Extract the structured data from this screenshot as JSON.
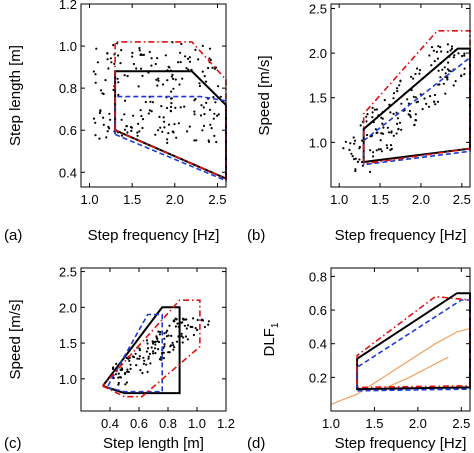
{
  "chart_data": [
    {
      "panel_label": "(a)",
      "type": "scatter",
      "xlabel": "Step frequency [Hz]",
      "ylabel": "Step length [m]",
      "xlim": [
        0.9,
        2.6
      ],
      "ylim": [
        0.33,
        1.2
      ],
      "xticks": [
        "1.0",
        "1.5",
        "2.0",
        "2.5"
      ],
      "yticks": [
        "0.4",
        "0.6",
        "0.8",
        "1.0",
        "1.2"
      ],
      "grid": false,
      "series": [
        {
          "style": "black-solid",
          "color": "#000000",
          "points": [
            [
              1.3,
              0.6
            ],
            [
              1.3,
              0.88
            ],
            [
              2.2,
              0.88
            ],
            [
              2.6,
              0.72
            ],
            [
              2.6,
              0.37
            ],
            [
              1.3,
              0.6
            ]
          ]
        },
        {
          "style": "blue-dashed",
          "color": "#1f3bd6",
          "points": [
            [
              1.3,
              0.58
            ],
            [
              1.3,
              0.76
            ],
            [
              2.3,
              0.76
            ],
            [
              2.6,
              0.74
            ],
            [
              2.6,
              0.36
            ],
            [
              1.3,
              0.58
            ]
          ]
        },
        {
          "style": "red-dashdot",
          "color": "#e01010",
          "points": [
            [
              1.3,
              0.6
            ],
            [
              1.3,
              1.02
            ],
            [
              2.2,
              1.02
            ],
            [
              2.6,
              0.84
            ],
            [
              2.6,
              0.37
            ],
            [
              1.3,
              0.6
            ]
          ]
        }
      ],
      "scatter_bounds": {
        "x": [
          1.05,
          2.55
        ],
        "y": [
          0.45,
          1.06
        ]
      }
    },
    {
      "panel_label": "(b)",
      "type": "scatter",
      "xlabel": "Step frequency [Hz]",
      "ylabel": "Speed [m/s]",
      "xlim": [
        0.9,
        2.6
      ],
      "ylim": [
        0.5,
        2.55
      ],
      "xticks": [
        "1.0",
        "1.5",
        "2.0",
        "2.5"
      ],
      "yticks": [
        "1.0",
        "1.5",
        "2.0",
        "2.5"
      ],
      "grid": false,
      "series": [
        {
          "style": "black-solid",
          "color": "#000000",
          "points": [
            [
              1.3,
              0.78
            ],
            [
              1.3,
              1.15
            ],
            [
              2.45,
              2.05
            ],
            [
              2.6,
              2.05
            ],
            [
              2.6,
              0.93
            ],
            [
              1.3,
              0.78
            ]
          ]
        },
        {
          "style": "blue-dashed",
          "color": "#1f3bd6",
          "points": [
            [
              1.3,
              0.75
            ],
            [
              1.3,
              1.02
            ],
            [
              2.6,
              1.95
            ],
            [
              2.6,
              0.9
            ],
            [
              1.3,
              0.75
            ]
          ]
        },
        {
          "style": "red-dashdot",
          "color": "#e01010",
          "points": [
            [
              1.3,
              0.76
            ],
            [
              1.3,
              1.32
            ],
            [
              2.2,
              2.25
            ],
            [
              2.6,
              2.25
            ],
            [
              2.6,
              0.93
            ],
            [
              1.3,
              0.76
            ]
          ]
        }
      ],
      "scatter_bounds": {
        "x": [
          1.05,
          2.55
        ],
        "y": [
          0.65,
          2.1
        ]
      }
    },
    {
      "panel_label": "(c)",
      "type": "scatter",
      "xlabel": "Step length [m]",
      "ylabel": "Speed [m/s]",
      "xlim": [
        0.2,
        1.2
      ],
      "ylim": [
        0.55,
        2.55
      ],
      "xticks": [
        "0.4",
        "0.6",
        "0.8",
        "1.0",
        "1.2"
      ],
      "yticks": [
        "1.0",
        "1.5",
        "2.0",
        "2.5"
      ],
      "grid": false,
      "series": [
        {
          "style": "black-solid",
          "color": "#000000",
          "points": [
            [
              0.35,
              0.9
            ],
            [
              0.5,
              0.8
            ],
            [
              0.88,
              0.8
            ],
            [
              0.88,
              2.0
            ],
            [
              0.76,
              2.0
            ],
            [
              0.35,
              0.9
            ]
          ]
        },
        {
          "style": "blue-dashed",
          "color": "#1f3bd6",
          "points": [
            [
              0.38,
              0.88
            ],
            [
              0.5,
              0.82
            ],
            [
              0.76,
              0.82
            ],
            [
              0.76,
              1.9
            ],
            [
              0.66,
              1.9
            ],
            [
              0.38,
              0.88
            ]
          ]
        },
        {
          "style": "red-dashdot",
          "color": "#e01010",
          "points": [
            [
              0.35,
              0.9
            ],
            [
              0.5,
              0.75
            ],
            [
              0.62,
              0.75
            ],
            [
              1.02,
              1.45
            ],
            [
              1.02,
              2.1
            ],
            [
              0.88,
              2.1
            ],
            [
              0.35,
              0.9
            ]
          ]
        }
      ],
      "scatter_bounds": {
        "x": [
          0.42,
          1.1
        ],
        "y": [
          0.9,
          1.85
        ]
      }
    },
    {
      "panel_label": "(d)",
      "type": "line",
      "xlabel": "Step frequency [Hz]",
      "ylabel": "DLF",
      "ylabel_subscript": "1",
      "xlim": [
        1.0,
        2.6
      ],
      "ylim": [
        0.0,
        0.85
      ],
      "xticks": [
        "1.0",
        "1.5",
        "2.0",
        "2.5"
      ],
      "yticks": [
        "0.2",
        "0.4",
        "0.6",
        "0.8"
      ],
      "grid": false,
      "series": [
        {
          "style": "orange-solid",
          "color": "#f0a060",
          "points": [
            [
              1.0,
              0.04
            ],
            [
              1.3,
              0.1
            ],
            [
              1.6,
              0.2
            ],
            [
              1.9,
              0.3
            ],
            [
              2.2,
              0.4
            ],
            [
              2.45,
              0.47
            ],
            [
              2.6,
              0.49
            ]
          ]
        },
        {
          "style": "orange-solid",
          "color": "#f0a060",
          "points": [
            [
              1.6,
              0.13
            ],
            [
              1.9,
              0.2
            ],
            [
              2.2,
              0.28
            ],
            [
              2.35,
              0.32
            ]
          ]
        },
        {
          "style": "black-solid",
          "color": "#000000",
          "points": [
            [
              1.3,
              0.21
            ],
            [
              1.3,
              0.31
            ],
            [
              2.45,
              0.7
            ],
            [
              2.6,
              0.7
            ],
            [
              2.6,
              0.14
            ],
            [
              1.3,
              0.13
            ],
            [
              1.3,
              0.21
            ]
          ]
        },
        {
          "style": "blue-dashed",
          "color": "#1f3bd6",
          "points": [
            [
              1.3,
              0.22
            ],
            [
              1.3,
              0.26
            ],
            [
              2.5,
              0.66
            ],
            [
              2.6,
              0.66
            ],
            [
              2.6,
              0.13
            ],
            [
              1.3,
              0.12
            ],
            [
              1.3,
              0.22
            ]
          ]
        },
        {
          "style": "red-dashdot",
          "color": "#e01010",
          "points": [
            [
              1.3,
              0.23
            ],
            [
              1.3,
              0.33
            ],
            [
              2.2,
              0.68
            ],
            [
              2.6,
              0.66
            ],
            [
              2.6,
              0.15
            ],
            [
              1.3,
              0.14
            ],
            [
              1.3,
              0.23
            ]
          ]
        }
      ]
    }
  ]
}
